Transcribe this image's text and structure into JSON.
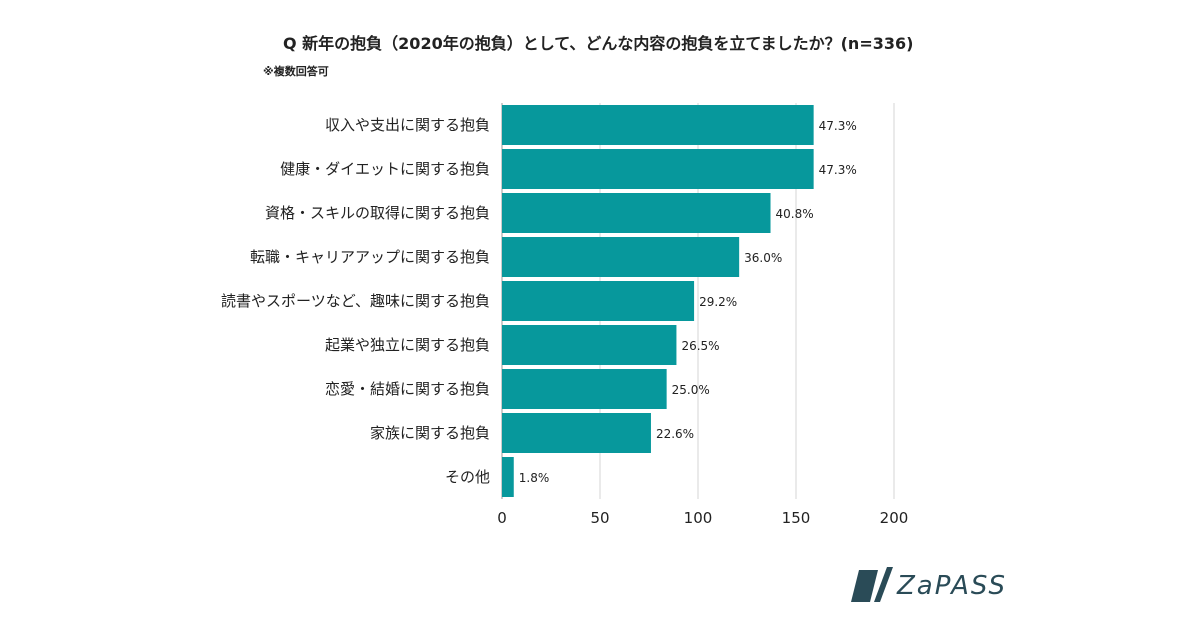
{
  "chart_data": {
    "type": "bar",
    "orientation": "horizontal",
    "title": "Q 新年の抱負（2020年の抱負）として、どんな内容の抱負を立てましたか？(n=336)",
    "subtitle": "※複数回答可",
    "categories": [
      "収入や支出に関する抱負",
      "健康・ダイエットに関する抱負",
      "資格・スキルの取得に関する抱負",
      "転職・キャリアアップに関する抱負",
      "読書やスポーツなど、趣味に関する抱負",
      "起業や独立に関する抱負",
      "恋愛・結婚に関する抱負",
      "家族に関する抱負",
      "その他"
    ],
    "values": [
      159,
      159,
      137,
      121,
      98,
      89,
      84,
      76,
      6
    ],
    "data_labels": [
      "47.3%",
      "47.3%",
      "40.8%",
      "36.0%",
      "29.2%",
      "26.5%",
      "25.0%",
      "22.6%",
      "1.8%"
    ],
    "xlim": [
      0,
      200
    ],
    "xticks": [
      0,
      50,
      100,
      150,
      200
    ],
    "xtick_labels": [
      "0",
      "50",
      "100",
      "150",
      "200"
    ],
    "grid": true,
    "bar_color": "#07989c"
  },
  "logo": {
    "text": "ZaPASS",
    "color": "#2a4b57"
  }
}
